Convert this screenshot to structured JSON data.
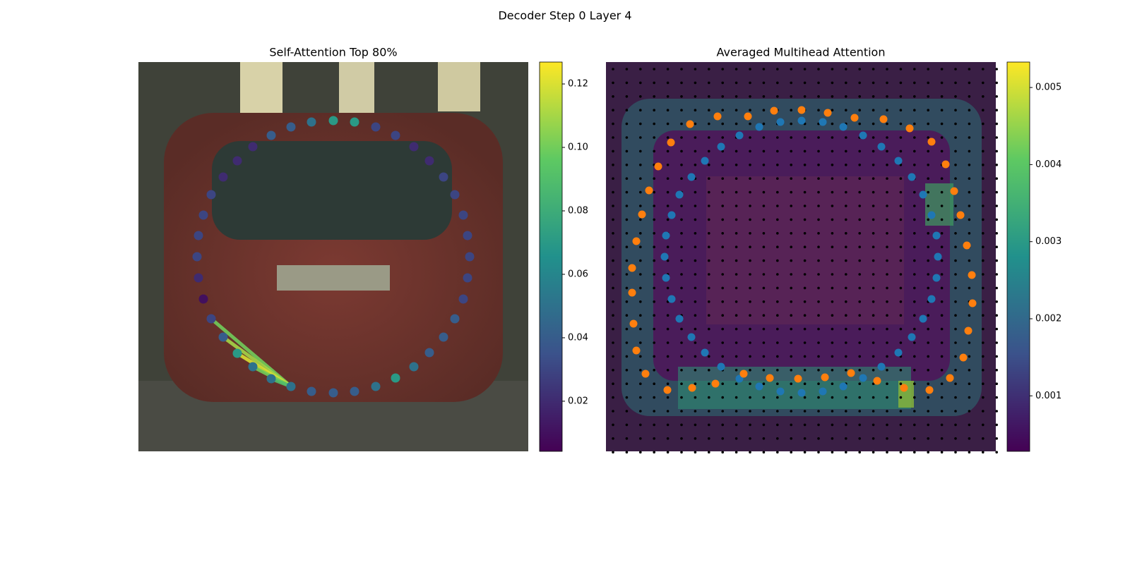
{
  "title": "Decoder Step 0 Layer 4",
  "chart_data": [
    {
      "type": "scatter",
      "title": "Self-Attention Top 80%",
      "xlim": [
        0,
        552
      ],
      "ylim": [
        552,
        0
      ],
      "colormap": "viridis",
      "x": [
        276,
        306,
        336,
        364,
        390,
        412,
        432,
        448,
        460,
        466,
        469,
        466,
        460,
        448,
        432,
        412,
        390,
        364,
        336,
        306,
        276,
        245,
        216,
        188,
        162,
        140,
        120,
        103,
        92,
        85,
        83,
        85,
        92,
        103,
        120,
        140,
        162,
        188,
        216,
        245
      ],
      "y": [
        83,
        85,
        92,
        104,
        120,
        140,
        163,
        188,
        217,
        246,
        276,
        306,
        336,
        364,
        390,
        412,
        432,
        448,
        460,
        467,
        469,
        467,
        460,
        449,
        432,
        413,
        390,
        364,
        336,
        306,
        276,
        246,
        217,
        188,
        163,
        140,
        120,
        104,
        92,
        85
      ],
      "values": [
        0.07,
        0.07,
        0.03,
        0.03,
        0.02,
        0.02,
        0.03,
        0.03,
        0.03,
        0.03,
        0.03,
        0.03,
        0.03,
        0.04,
        0.04,
        0.04,
        0.05,
        0.07,
        0.05,
        0.04,
        0.04,
        0.04,
        0.05,
        0.05,
        0.05,
        0.07,
        0.04,
        0.03,
        0.01,
        0.02,
        0.03,
        0.03,
        0.03,
        0.03,
        0.02,
        0.02,
        0.02,
        0.04,
        0.04,
        0.05
      ],
      "links": [
        {
          "from": 22,
          "to": 27,
          "value": 0.1
        },
        {
          "from": 22,
          "to": 26,
          "value": 0.11
        },
        {
          "from": 22,
          "to": 25,
          "value": 0.12
        },
        {
          "from": 22,
          "to": 24,
          "value": 0.1
        },
        {
          "from": 22,
          "to": 23,
          "value": 0.09
        }
      ],
      "clim": [
        0.0042,
        0.1269
      ],
      "cticks": [
        0.02,
        0.04,
        0.06,
        0.08,
        {
          "value": 0.1,
          "label": "0.10"
        },
        0.12
      ]
    },
    {
      "type": "scatter",
      "title": "Averaged Multihead Attention",
      "xlim": [
        0,
        552
      ],
      "ylim": [
        552,
        0
      ],
      "colormap": "viridis",
      "series": [
        {
          "color": "#1f77b4",
          "x": [
            277,
            307,
            336,
            364,
            390,
            414,
            433,
            449,
            461,
            468,
            470,
            468,
            461,
            449,
            433,
            414,
            390,
            364,
            336,
            307,
            277,
            247,
            217,
            189,
            163,
            140,
            121,
            104,
            93,
            85,
            83,
            85,
            93,
            104,
            121,
            140,
            163,
            189,
            217,
            247
          ],
          "y": [
            83,
            85,
            92,
            104,
            120,
            140,
            163,
            188,
            217,
            246,
            276,
            306,
            336,
            364,
            390,
            412,
            432,
            448,
            460,
            467,
            469,
            467,
            460,
            449,
            432,
            412,
            390,
            364,
            336,
            306,
            276,
            246,
            217,
            188,
            163,
            140,
            120,
            104,
            92,
            85
          ]
        },
        {
          "color": "#ff7f0e",
          "x": [
            277,
            314,
            352,
            393,
            430,
            461,
            481,
            493,
            502,
            511,
            518,
            519,
            513,
            506,
            487,
            458,
            422,
            384,
            347,
            310,
            272,
            232,
            195,
            155,
            122,
            87,
            56,
            43,
            39,
            37,
            37,
            43,
            51,
            61,
            74,
            92,
            119,
            158,
            201,
            238
          ],
          "y": [
            68,
            72,
            79,
            81,
            94,
            113,
            145,
            183,
            217,
            260,
            302,
            342,
            381,
            419,
            448,
            465,
            462,
            452,
            441,
            447,
            449,
            448,
            442,
            456,
            462,
            465,
            442,
            409,
            371,
            327,
            292,
            254,
            216,
            182,
            148,
            114,
            88,
            77,
            77,
            69
          ]
        }
      ],
      "clim": [
        0.00028,
        0.00533
      ],
      "cticks": [
        0.001,
        0.002,
        0.003,
        0.004,
        0.005
      ]
    }
  ]
}
